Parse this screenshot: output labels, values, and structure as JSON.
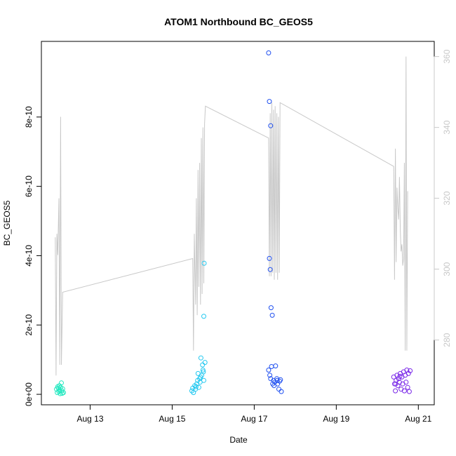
{
  "chart_data": {
    "type": "scatter",
    "title": "ATOM1 Northbound BC_GEOS5",
    "xlabel": "Date",
    "ylabel": "BC_GEOS5",
    "x_ticks": [
      "Aug 13",
      "Aug 15",
      "Aug 17",
      "Aug 19",
      "Aug 21"
    ],
    "x_tick_days": [
      13,
      15,
      17,
      19,
      21
    ],
    "xlim": [
      12.0,
      21.2
    ],
    "y_ticks": [
      "0e+00",
      "2e-10",
      "4e-10",
      "6e-10",
      "8e-10"
    ],
    "y_tick_values": [
      0,
      2e-10,
      4e-10,
      6e-10,
      8e-10
    ],
    "ylim": [
      -1.2e-11,
      1e-09
    ],
    "y2_ticks": [
      "280",
      "300",
      "320",
      "340",
      "360"
    ],
    "y2_tick_values": [
      280,
      300,
      320,
      340,
      360
    ],
    "y2lim": [
      263.5,
      362.5
    ],
    "grid": false,
    "colors": {
      "line": "#c8c8c8",
      "series": [
        "#22e8c0",
        "#22c8f0",
        "#2050f0",
        "#7a28e8"
      ]
    },
    "series": [
      {
        "color": "#22e8c0",
        "points": [
          [
            12.18,
            1.5e-11
          ],
          [
            12.2,
            5e-12
          ],
          [
            12.21,
            2.2e-11
          ],
          [
            12.22,
            1.8e-11
          ],
          [
            12.24,
            8e-12
          ],
          [
            12.25,
            2.5e-11
          ],
          [
            12.26,
            1.2e-11
          ],
          [
            12.28,
            2e-11
          ],
          [
            12.3,
            3.3e-11
          ],
          [
            12.31,
            1e-11
          ],
          [
            12.32,
            3e-12
          ],
          [
            12.33,
            1.6e-11
          ],
          [
            12.35,
            5e-12
          ],
          [
            12.27,
            2e-12
          ]
        ]
      },
      {
        "color": "#22c8f0",
        "points": [
          [
            15.48,
            1e-11
          ],
          [
            15.5,
            1.8e-11
          ],
          [
            15.52,
            5e-12
          ],
          [
            15.55,
            2.5e-11
          ],
          [
            15.57,
            1.5e-11
          ],
          [
            15.6,
            3e-11
          ],
          [
            15.62,
            4e-11
          ],
          [
            15.63,
            6e-11
          ],
          [
            15.65,
            2e-11
          ],
          [
            15.67,
            4.5e-11
          ],
          [
            15.68,
            3.5e-11
          ],
          [
            15.7,
            1.05e-10
          ],
          [
            15.72,
            5.5e-11
          ],
          [
            15.74,
            8.5e-11
          ],
          [
            15.75,
            7e-11
          ],
          [
            15.76,
            6.5e-11
          ],
          [
            15.77,
            4e-11
          ],
          [
            15.78,
            3.78e-10
          ],
          [
            15.77,
            2.25e-10
          ],
          [
            15.8,
            9.2e-11
          ],
          [
            15.69,
            5e-11
          ],
          [
            15.58,
            2.2e-11
          ]
        ]
      },
      {
        "color": "#2050f0",
        "points": [
          [
            17.35,
            9.85e-10
          ],
          [
            17.37,
            8.45e-10
          ],
          [
            17.4,
            7.75e-10
          ],
          [
            17.37,
            3.92e-10
          ],
          [
            17.39,
            3.6e-10
          ],
          [
            17.41,
            2.5e-10
          ],
          [
            17.44,
            2.28e-10
          ],
          [
            17.35,
            7e-11
          ],
          [
            17.38,
            5.5e-11
          ],
          [
            17.4,
            4.5e-11
          ],
          [
            17.42,
            8e-11
          ],
          [
            17.45,
            3e-11
          ],
          [
            17.47,
            4e-11
          ],
          [
            17.5,
            3.5e-11
          ],
          [
            17.52,
            8.2e-11
          ],
          [
            17.55,
            4.5e-11
          ],
          [
            17.57,
            3e-11
          ],
          [
            17.6,
            1.5e-11
          ],
          [
            17.62,
            3.8e-11
          ],
          [
            17.64,
            4.2e-11
          ],
          [
            17.66,
            8e-12
          ],
          [
            17.56,
            4e-11
          ],
          [
            17.48,
            2.5e-11
          ]
        ]
      },
      {
        "color": "#7a28e8",
        "points": [
          [
            20.4,
            5e-11
          ],
          [
            20.42,
            3e-11
          ],
          [
            20.44,
            1e-11
          ],
          [
            20.46,
            4e-11
          ],
          [
            20.48,
            5.5e-11
          ],
          [
            20.5,
            2.5e-11
          ],
          [
            20.52,
            4.5e-11
          ],
          [
            20.54,
            3.5e-11
          ],
          [
            20.56,
            6e-11
          ],
          [
            20.58,
            1.5e-11
          ],
          [
            20.6,
            5e-11
          ],
          [
            20.62,
            3e-11
          ],
          [
            20.64,
            6.5e-11
          ],
          [
            20.66,
            1e-11
          ],
          [
            20.68,
            5.5e-11
          ],
          [
            20.7,
            3.5e-11
          ],
          [
            20.72,
            7e-11
          ],
          [
            20.74,
            2e-11
          ],
          [
            20.76,
            6e-11
          ],
          [
            20.78,
            8e-12
          ],
          [
            20.8,
            6.8e-11
          ],
          [
            20.45,
            3e-11
          ],
          [
            20.55,
            5.2e-11
          ]
        ]
      }
    ],
    "line_y2": [
      [
        12.15,
        309
      ],
      [
        12.17,
        270
      ],
      [
        12.19,
        310
      ],
      [
        12.21,
        304
      ],
      [
        12.24,
        320
      ],
      [
        12.26,
        273
      ],
      [
        12.28,
        343
      ],
      [
        12.3,
        273
      ],
      [
        12.33,
        293.5
      ],
      [
        15.5,
        303
      ],
      [
        15.52,
        277
      ],
      [
        15.54,
        310
      ],
      [
        15.57,
        290
      ],
      [
        15.59,
        320
      ],
      [
        15.61,
        287
      ],
      [
        15.63,
        328
      ],
      [
        15.65,
        295
      ],
      [
        15.67,
        330
      ],
      [
        15.69,
        290
      ],
      [
        15.71,
        337
      ],
      [
        15.73,
        293
      ],
      [
        15.75,
        340
      ],
      [
        15.77,
        296
      ],
      [
        15.79,
        341
      ],
      [
        15.81,
        346
      ],
      [
        17.35,
        337
      ],
      [
        17.37,
        298
      ],
      [
        17.39,
        344
      ],
      [
        17.41,
        298
      ],
      [
        17.43,
        347
      ],
      [
        17.45,
        299
      ],
      [
        17.47,
        345
      ],
      [
        17.49,
        297
      ],
      [
        17.51,
        346
      ],
      [
        17.53,
        299
      ],
      [
        17.55,
        344
      ],
      [
        17.57,
        297
      ],
      [
        17.59,
        343
      ],
      [
        17.61,
        299
      ],
      [
        17.63,
        347
      ],
      [
        20.4,
        329
      ],
      [
        20.42,
        297
      ],
      [
        20.44,
        334
      ],
      [
        20.46,
        302
      ],
      [
        20.48,
        323
      ],
      [
        20.5,
        317
      ],
      [
        20.52,
        314
      ],
      [
        20.54,
        326
      ],
      [
        20.56,
        311
      ],
      [
        20.58,
        305
      ],
      [
        20.6,
        307
      ],
      [
        20.62,
        301
      ],
      [
        20.64,
        303
      ],
      [
        20.66,
        330
      ],
      [
        20.68,
        277
      ],
      [
        20.7,
        360
      ],
      [
        20.72,
        277
      ],
      [
        20.74,
        322
      ]
    ]
  }
}
